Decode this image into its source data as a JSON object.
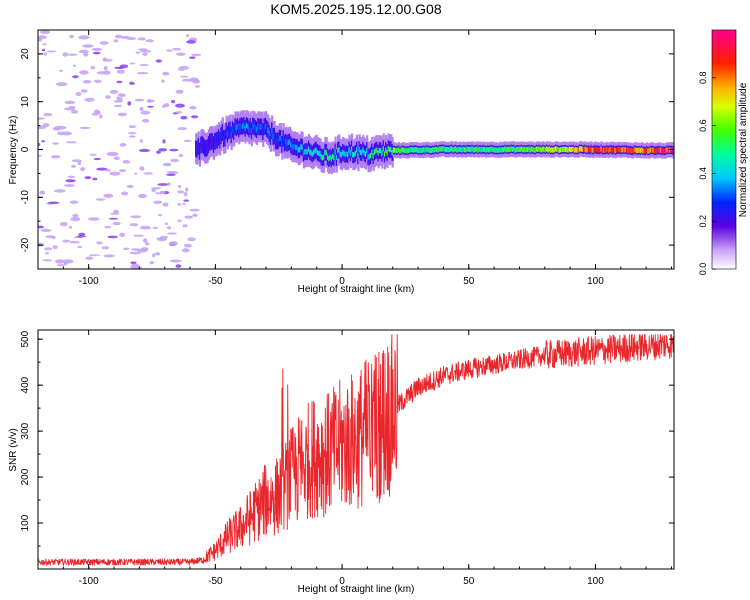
{
  "title": "KOM5.2025.195.12.00.G08",
  "colors": {
    "snr_line": "#e8262b",
    "noise": "#c7a4f5"
  },
  "chart_data": [
    {
      "type": "heatmap",
      "xlabel": "Height of straight line (km)",
      "ylabel": "Frequency (Hz)",
      "xlim": [
        -120,
        131
      ],
      "ylim": [
        -25,
        25
      ],
      "xticks": [
        -100,
        -50,
        0,
        50,
        100
      ],
      "yticks": [
        -20,
        -10,
        0,
        10,
        20
      ],
      "colorbar": {
        "label": "Normalized spectral amplitude",
        "range": [
          0,
          1
        ],
        "ticks": [
          "0.0",
          "0.2",
          "0.4",
          "0.6",
          "0.8"
        ],
        "colormap": "rainbow (white-violet-blue-cyan-green-yellow-orange-red-magenta)"
      },
      "signal_track": {
        "x": [
          -58,
          -55,
          -50,
          -45,
          -40,
          -35,
          -30,
          -25,
          -20,
          -15,
          -10,
          -5,
          0,
          5,
          10,
          15,
          20,
          30,
          40,
          50,
          60,
          70,
          80,
          90,
          100,
          110,
          120,
          131
        ],
        "freq": [
          -0.5,
          0.5,
          2,
          3.5,
          4.5,
          4.5,
          4,
          2,
          0.5,
          0,
          -1,
          -1.5,
          -0.5,
          -0.5,
          -1,
          -0.5,
          -0.2,
          -0.1,
          0,
          0,
          0,
          0,
          0,
          0,
          0,
          -0.1,
          -0.2,
          -0.2
        ],
        "amplitude": [
          0.25,
          0.2,
          0.22,
          0.3,
          0.35,
          0.3,
          0.32,
          0.3,
          0.33,
          0.4,
          0.45,
          0.5,
          0.4,
          0.45,
          0.45,
          0.5,
          0.55,
          0.5,
          0.5,
          0.5,
          0.5,
          0.55,
          0.6,
          0.7,
          0.85,
          0.8,
          0.85,
          0.9
        ]
      },
      "noise_region_x": [
        -120,
        -57
      ]
    },
    {
      "type": "line",
      "xlabel": "Height of straight line (km)",
      "ylabel": "SNR (v/v)",
      "xlim": [
        -120,
        131
      ],
      "ylim": [
        0,
        520
      ],
      "xticks": [
        -100,
        -50,
        0,
        50,
        100
      ],
      "yticks": [
        100,
        200,
        300,
        400,
        500
      ],
      "envelope": {
        "x": [
          -120,
          -60,
          -55,
          -50,
          -45,
          -40,
          -35,
          -30,
          -25,
          -20,
          -15,
          -10,
          -5,
          0,
          5,
          10,
          15,
          20,
          25,
          30,
          40,
          50,
          60,
          70,
          80,
          90,
          100,
          110,
          120,
          131
        ],
        "y": [
          15,
          15,
          20,
          40,
          70,
          90,
          120,
          150,
          160,
          200,
          230,
          250,
          250,
          270,
          280,
          300,
          320,
          345,
          370,
          395,
          420,
          435,
          445,
          455,
          465,
          470,
          475,
          480,
          485,
          490
        ]
      }
    }
  ]
}
